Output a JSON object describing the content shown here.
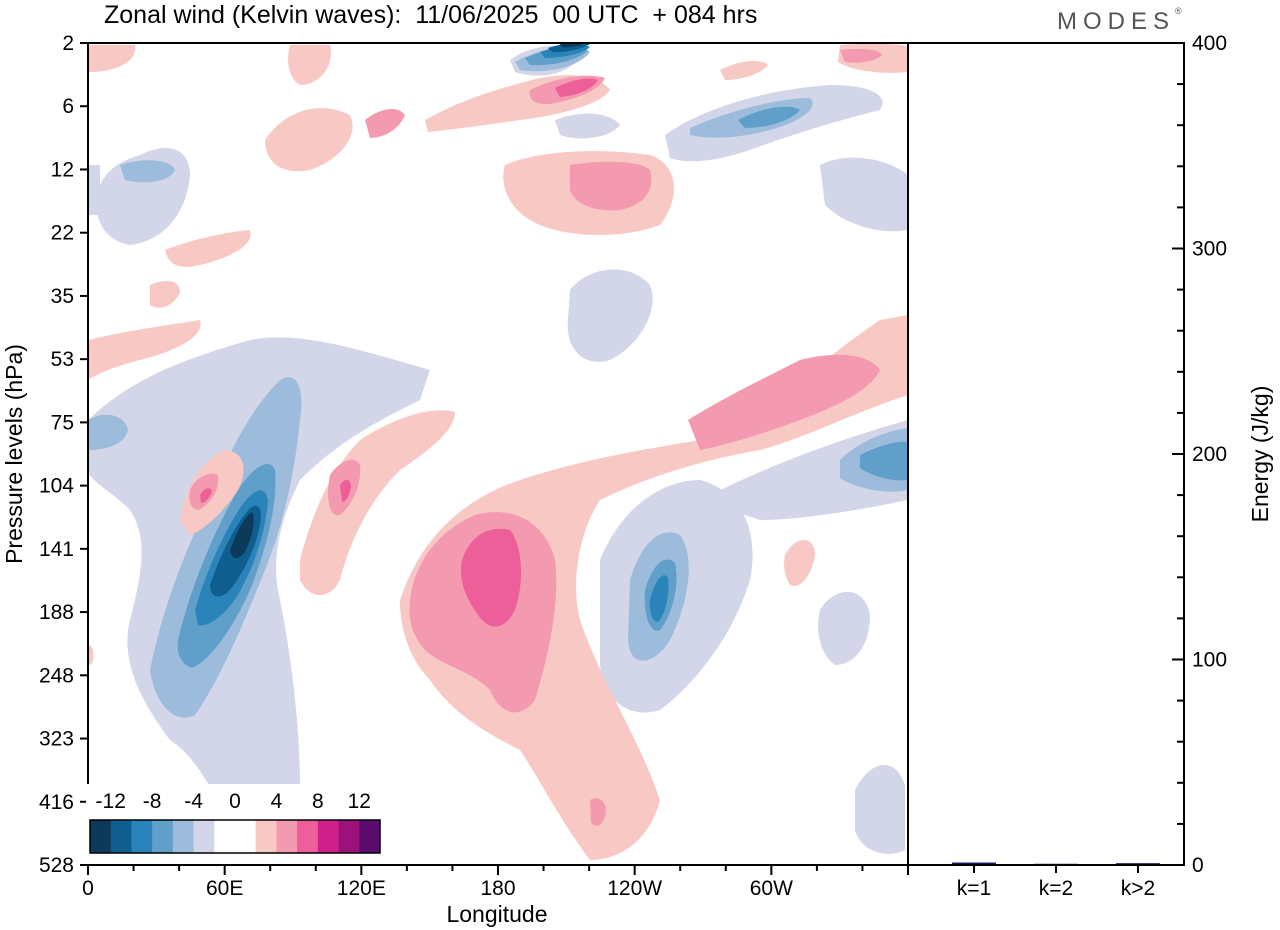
{
  "header": {
    "title": "Zonal wind (Kelvin waves):  11/06/2025  00 UTC  + 084 hrs",
    "brand": "MODES"
  },
  "colors": {
    "negative": [
      "#0d3a5a",
      "#0e5f8f",
      "#2a84ba",
      "#5f9fc9",
      "#9dbcdb",
      "#d2d6e8"
    ],
    "zero": "#ffffff",
    "positive": [
      "#f8c8c4",
      "#f49ab0",
      "#ec5f98",
      "#cf1f88",
      "#9b127a",
      "#5a0b6e"
    ]
  },
  "chart_data": [
    {
      "type": "heatmap",
      "title": "Zonal wind (Kelvin waves):  11/06/2025  00 UTC  + 084 hrs",
      "xlabel": "Longitude",
      "ylabel": "Pressure levels (hPa)",
      "x_ticks": [
        "0",
        "60E",
        "120E",
        "180",
        "120W",
        "60W"
      ],
      "y_ticks": [
        "2",
        "6",
        "12",
        "22",
        "35",
        "53",
        "75",
        "104",
        "141",
        "188",
        "248",
        "323",
        "416",
        "528"
      ],
      "colorbar_labels": [
        "-12",
        "-8",
        "-4",
        "0",
        "4",
        "8",
        "12"
      ],
      "color_levels": [
        -14,
        -12,
        -10,
        -8,
        -6,
        -4,
        -2,
        2,
        4,
        6,
        8,
        10,
        12,
        14
      ],
      "features": [
        {
          "lon_center": 60,
          "level_center": 141,
          "lon_width": 30,
          "value": -13
        },
        {
          "lon_center": 52,
          "level_center": 188,
          "lon_width": 35,
          "value": -8
        },
        {
          "lon_center": 180,
          "level_center": 141,
          "lon_width": 45,
          "value": 6
        },
        {
          "lon_center": 125,
          "level_center": 188,
          "lon_width": 25,
          "value": -7
        },
        {
          "lon_center": 128,
          "level_center": 2,
          "lon_width": 35,
          "value": -10
        },
        {
          "lon_center": 125,
          "level_center": 6,
          "lon_width": 30,
          "value": 6
        },
        {
          "lon_center": 210,
          "level_center": 12,
          "lon_width": 60,
          "value": 5
        },
        {
          "lon_center": 305,
          "level_center": 75,
          "lon_width": 70,
          "value": 6
        },
        {
          "lon_center": 350,
          "level_center": 104,
          "lon_width": 30,
          "value": -6
        },
        {
          "lon_center": 330,
          "level_center": 6,
          "lon_width": 40,
          "value": -5
        },
        {
          "lon_center": 110,
          "level_center": 104,
          "lon_width": 25,
          "value": 5
        }
      ]
    },
    {
      "type": "bar",
      "categories": [
        "k=1",
        "k=2",
        "k>2"
      ],
      "values": [
        1.2,
        0.6,
        0.9
      ],
      "ylabel": "Energy (J/kg)",
      "ylim": [
        0,
        400
      ],
      "y_ticks": [
        "0",
        "100",
        "200",
        "300",
        "400"
      ],
      "bar_color": "#1a1a5e"
    }
  ]
}
